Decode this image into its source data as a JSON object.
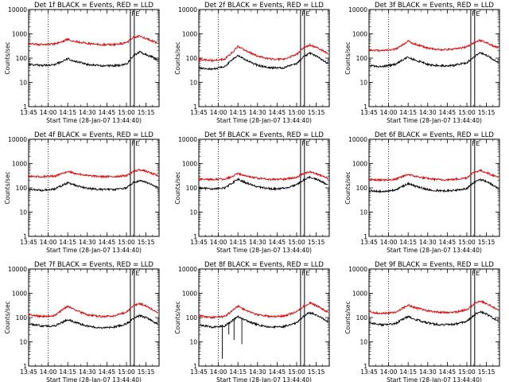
{
  "chart_data": [
    {
      "type": "line",
      "title": "Det 1f BLACK = Events, RED = LLD",
      "xlabel": "Start Time (28-Jan-07 13:44:40)",
      "ylabel": "Counts/sec",
      "yscale": "log",
      "ylim": [
        1,
        10000
      ],
      "xlim": [
        "13:45",
        "15:25"
      ],
      "x_ticks": [
        "13:45",
        "14:00",
        "14:15",
        "14:30",
        "14:45",
        "15:00",
        "15:15"
      ],
      "y_ticks": [
        "1",
        "10",
        "100",
        "1000",
        "10000"
      ],
      "markers": {
        "dotted": [
          "14:00"
        ],
        "solid": [
          "15:03",
          "15:06"
        ],
        "labels": [
          "F",
          "E"
        ]
      },
      "series": [
        {
          "name": "BLACK = Events",
          "color": "#000000",
          "x": [
            "13:45",
            "13:55",
            "14:05",
            "14:10",
            "14:15",
            "14:20",
            "14:30",
            "14:40",
            "14:50",
            "15:00",
            "15:05",
            "15:10",
            "15:15",
            "15:20",
            "15:24"
          ],
          "y": [
            55,
            50,
            55,
            70,
            95,
            75,
            55,
            48,
            48,
            55,
            120,
            180,
            140,
            110,
            80
          ]
        },
        {
          "name": "RED = LLD",
          "color": "#e00000",
          "x": [
            "13:45",
            "13:55",
            "14:05",
            "14:10",
            "14:15",
            "14:20",
            "14:30",
            "14:40",
            "14:50",
            "15:00",
            "15:05",
            "15:10",
            "15:15",
            "15:20",
            "15:24"
          ],
          "y": [
            380,
            360,
            380,
            460,
            600,
            500,
            400,
            360,
            360,
            420,
            700,
            800,
            650,
            500,
            400
          ]
        }
      ]
    },
    {
      "type": "line",
      "title": "Det 2f BLACK = Events, RED = LLD",
      "xlabel": "Start Time (28-Jan-07 13:44:40)",
      "ylabel": "Counts/sec",
      "yscale": "log",
      "ylim": [
        1,
        10000
      ],
      "xlim": [
        "13:45",
        "15:25"
      ],
      "x_ticks": [
        "13:45",
        "14:00",
        "14:15",
        "14:30",
        "14:45",
        "15:00",
        "15:15"
      ],
      "y_ticks": [
        "1",
        "10",
        "100",
        "1000",
        "10000"
      ],
      "markers": {
        "dotted": [
          "14:00"
        ],
        "solid": [
          "15:03",
          "15:06"
        ],
        "labels": [
          "F",
          "E"
        ]
      },
      "series": [
        {
          "name": "BLACK = Events",
          "color": "#000000",
          "x": [
            "13:45",
            "13:55",
            "14:05",
            "14:10",
            "14:15",
            "14:20",
            "14:30",
            "14:40",
            "14:50",
            "15:00",
            "15:05",
            "15:10",
            "15:15",
            "15:20",
            "15:24"
          ],
          "y": [
            40,
            35,
            45,
            80,
            130,
            90,
            50,
            40,
            40,
            60,
            110,
            160,
            120,
            80,
            60
          ]
        },
        {
          "name": "RED = LLD",
          "color": "#e00000",
          "x": [
            "13:45",
            "13:55",
            "14:05",
            "14:10",
            "14:15",
            "14:20",
            "14:30",
            "14:40",
            "14:50",
            "15:00",
            "15:05",
            "15:10",
            "15:15",
            "15:20",
            "15:24"
          ],
          "y": [
            90,
            80,
            90,
            160,
            300,
            220,
            120,
            90,
            90,
            140,
            260,
            350,
            280,
            200,
            150
          ]
        }
      ]
    },
    {
      "type": "line",
      "title": "Det 3f BLACK = Events, RED = LLD",
      "xlabel": "Start Time (28-Jan-07 13:44:40)",
      "ylabel": "Counts/sec",
      "yscale": "log",
      "ylim": [
        1,
        10000
      ],
      "xlim": [
        "13:45",
        "15:25"
      ],
      "x_ticks": [
        "13:45",
        "14:00",
        "14:15",
        "14:30",
        "14:45",
        "15:00",
        "15:15"
      ],
      "y_ticks": [
        "1",
        "10",
        "100",
        "1000",
        "10000"
      ],
      "markers": {
        "dotted": [
          "14:00"
        ],
        "solid": [
          "15:03",
          "15:06"
        ],
        "labels": [
          "F",
          "E"
        ]
      },
      "series": [
        {
          "name": "BLACK = Events",
          "color": "#000000",
          "x": [
            "13:45",
            "13:55",
            "14:05",
            "14:10",
            "14:15",
            "14:20",
            "14:30",
            "14:40",
            "14:50",
            "15:00",
            "15:05",
            "15:10",
            "15:15",
            "15:20",
            "15:24"
          ],
          "y": [
            50,
            45,
            55,
            80,
            110,
            85,
            55,
            48,
            50,
            65,
            110,
            170,
            130,
            90,
            70
          ]
        },
        {
          "name": "RED = LLD",
          "color": "#e00000",
          "x": [
            "13:45",
            "13:55",
            "14:05",
            "14:10",
            "14:15",
            "14:20",
            "14:30",
            "14:40",
            "14:50",
            "15:00",
            "15:05",
            "15:10",
            "15:15",
            "15:20",
            "15:24"
          ],
          "y": [
            220,
            200,
            230,
            330,
            500,
            380,
            260,
            220,
            230,
            290,
            420,
            550,
            430,
            320,
            260
          ]
        }
      ]
    },
    {
      "type": "line",
      "title": "Det 4f BLACK = Events, RED = LLD",
      "xlabel": "Start Time (28-Jan-07 13:44:40)",
      "ylabel": "Counts/sec",
      "yscale": "log",
      "ylim": [
        1,
        10000
      ],
      "xlim": [
        "13:45",
        "15:25"
      ],
      "x_ticks": [
        "13:45",
        "14:00",
        "14:15",
        "14:30",
        "14:45",
        "15:00",
        "15:15"
      ],
      "y_ticks": [
        "1",
        "10",
        "100",
        "1000",
        "10000"
      ],
      "markers": {
        "dotted": [
          "14:00"
        ],
        "solid": [
          "15:03",
          "15:06"
        ],
        "labels": [
          "F",
          "E"
        ]
      },
      "series": [
        {
          "name": "BLACK = Events",
          "color": "#000000",
          "x": [
            "13:45",
            "13:55",
            "14:05",
            "14:10",
            "14:15",
            "14:20",
            "14:30",
            "14:40",
            "14:50",
            "15:00",
            "15:05",
            "15:10",
            "15:15",
            "15:20",
            "15:24"
          ],
          "y": [
            85,
            80,
            90,
            120,
            160,
            130,
            95,
            85,
            85,
            100,
            160,
            200,
            170,
            130,
            100
          ]
        },
        {
          "name": "RED = LLD",
          "color": "#e00000",
          "x": [
            "13:45",
            "13:55",
            "14:05",
            "14:10",
            "14:15",
            "14:20",
            "14:30",
            "14:40",
            "14:50",
            "15:00",
            "15:05",
            "15:10",
            "15:15",
            "15:20",
            "15:24"
          ],
          "y": [
            300,
            290,
            300,
            380,
            480,
            400,
            320,
            290,
            290,
            320,
            460,
            560,
            480,
            380,
            320
          ]
        }
      ]
    },
    {
      "type": "line",
      "title": "Det 5f BLACK = Events, RED = LLD",
      "xlabel": "Start Time (28-Jan-07 13:44:40)",
      "ylabel": "Counts/sec",
      "yscale": "log",
      "ylim": [
        1,
        10000
      ],
      "xlim": [
        "13:45",
        "15:25"
      ],
      "x_ticks": [
        "13:45",
        "14:00",
        "14:15",
        "14:30",
        "14:45",
        "15:00",
        "15:15"
      ],
      "y_ticks": [
        "1",
        "10",
        "100",
        "1000",
        "10000"
      ],
      "markers": {
        "dotted": [
          "14:00"
        ],
        "solid": [
          "15:03",
          "15:06"
        ],
        "labels": [
          "F",
          "E"
        ]
      },
      "series": [
        {
          "name": "BLACK = Events",
          "color": "#000000",
          "x": [
            "13:45",
            "13:55",
            "14:05",
            "14:10",
            "14:15",
            "14:20",
            "14:30",
            "14:40",
            "14:50",
            "15:00",
            "15:05",
            "15:10",
            "15:15",
            "15:20",
            "15:24"
          ],
          "y": [
            100,
            90,
            100,
            150,
            230,
            170,
            110,
            90,
            95,
            130,
            210,
            280,
            230,
            170,
            130
          ]
        },
        {
          "name": "RED = LLD",
          "color": "#e00000",
          "x": [
            "13:45",
            "13:55",
            "14:05",
            "14:10",
            "14:15",
            "14:20",
            "14:30",
            "14:40",
            "14:50",
            "15:00",
            "15:05",
            "15:10",
            "15:15",
            "15:20",
            "15:24"
          ],
          "y": [
            230,
            220,
            230,
            290,
            380,
            320,
            250,
            220,
            225,
            270,
            380,
            450,
            380,
            300,
            250
          ]
        }
      ]
    },
    {
      "type": "line",
      "title": "Det 6f BLACK = Events, RED = LLD",
      "xlabel": "Start Time (28-Jan-07 13:44:40)",
      "ylabel": "Counts/sec",
      "yscale": "log",
      "ylim": [
        1,
        10000
      ],
      "xlim": [
        "13:45",
        "15:25"
      ],
      "x_ticks": [
        "13:45",
        "14:00",
        "14:15",
        "14:30",
        "14:45",
        "15:00",
        "15:15"
      ],
      "y_ticks": [
        "1",
        "10",
        "100",
        "1000",
        "10000"
      ],
      "markers": {
        "dotted": [
          "14:00"
        ],
        "solid": [
          "15:03",
          "15:06"
        ],
        "labels": [
          "F",
          "E"
        ]
      },
      "series": [
        {
          "name": "BLACK = Events",
          "color": "#000000",
          "x": [
            "13:45",
            "13:55",
            "14:05",
            "14:10",
            "14:15",
            "14:20",
            "14:30",
            "14:40",
            "14:50",
            "15:00",
            "15:05",
            "15:10",
            "15:15",
            "15:20",
            "15:24"
          ],
          "y": [
            75,
            70,
            80,
            110,
            150,
            120,
            85,
            75,
            78,
            95,
            160,
            220,
            180,
            130,
            100
          ]
        },
        {
          "name": "RED = LLD",
          "color": "#e00000",
          "x": [
            "13:45",
            "13:55",
            "14:05",
            "14:10",
            "14:15",
            "14:20",
            "14:30",
            "14:40",
            "14:50",
            "15:00",
            "15:05",
            "15:10",
            "15:15",
            "15:20",
            "15:24"
          ],
          "y": [
            220,
            210,
            220,
            280,
            360,
            300,
            240,
            215,
            220,
            260,
            420,
            520,
            430,
            330,
            270
          ]
        }
      ]
    },
    {
      "type": "line",
      "title": "Det 7f BLACK = Events, RED = LLD",
      "xlabel": "Start Time (28-Jan-07 13:44:40)",
      "ylabel": "Counts/sec",
      "yscale": "log",
      "ylim": [
        1,
        10000
      ],
      "xlim": [
        "13:45",
        "15:25"
      ],
      "x_ticks": [
        "13:45",
        "14:00",
        "14:15",
        "14:30",
        "14:45",
        "15:00",
        "15:15"
      ],
      "y_ticks": [
        "1",
        "10",
        "100",
        "1000",
        "10000"
      ],
      "markers": {
        "dotted": [
          "14:00"
        ],
        "solid": [
          "15:03",
          "15:06"
        ],
        "labels": [
          "F",
          "E"
        ]
      },
      "series": [
        {
          "name": "BLACK = Events",
          "color": "#000000",
          "x": [
            "13:45",
            "13:55",
            "14:05",
            "14:10",
            "14:15",
            "14:20",
            "14:30",
            "14:40",
            "14:50",
            "15:00",
            "15:05",
            "15:10",
            "15:15",
            "15:20",
            "15:24"
          ],
          "y": [
            55,
            45,
            45,
            60,
            85,
            65,
            45,
            38,
            40,
            55,
            90,
            120,
            100,
            70,
            55
          ]
        },
        {
          "name": "RED = LLD",
          "color": "#e00000",
          "x": [
            "13:45",
            "13:55",
            "14:05",
            "14:10",
            "14:15",
            "14:20",
            "14:30",
            "14:40",
            "14:50",
            "15:00",
            "15:05",
            "15:10",
            "15:15",
            "15:20",
            "15:24"
          ],
          "y": [
            130,
            110,
            120,
            190,
            300,
            210,
            130,
            110,
            115,
            170,
            290,
            380,
            300,
            210,
            160
          ]
        }
      ]
    },
    {
      "type": "line",
      "title": "Det 8f BLACK = Events, RED = LLD",
      "xlabel": "Start Time (28-Jan-07 13:44:40)",
      "ylabel": "Counts/sec",
      "yscale": "log",
      "ylim": [
        1,
        10000
      ],
      "xlim": [
        "13:45",
        "15:25"
      ],
      "x_ticks": [
        "13:45",
        "14:00",
        "14:15",
        "14:30",
        "14:45",
        "15:00",
        "15:15"
      ],
      "y_ticks": [
        "1",
        "10",
        "100",
        "1000",
        "10000"
      ],
      "markers": {
        "dotted": [
          "14:00"
        ],
        "solid": [
          "15:03",
          "15:06"
        ],
        "labels": [
          "F",
          "E"
        ]
      },
      "dropouts": [
        {
          "x": "14:03",
          "y": 2
        },
        {
          "x": "14:08",
          "y": 20
        },
        {
          "x": "14:12",
          "y": 12
        },
        {
          "x": "14:18",
          "y": 8
        }
      ],
      "series": [
        {
          "name": "BLACK = Events",
          "color": "#000000",
          "x": [
            "13:45",
            "13:55",
            "14:05",
            "14:10",
            "14:15",
            "14:20",
            "14:30",
            "14:40",
            "14:50",
            "15:00",
            "15:05",
            "15:10",
            "15:15",
            "15:20",
            "15:24"
          ],
          "y": [
            50,
            40,
            45,
            70,
            110,
            80,
            50,
            40,
            42,
            60,
            110,
            160,
            130,
            90,
            65
          ]
        },
        {
          "name": "RED = LLD",
          "color": "#e00000",
          "x": [
            "13:45",
            "13:55",
            "14:05",
            "14:10",
            "14:15",
            "14:20",
            "14:30",
            "14:40",
            "14:50",
            "15:00",
            "15:05",
            "15:10",
            "15:15",
            "15:20",
            "15:24"
          ],
          "y": [
            120,
            100,
            110,
            180,
            300,
            210,
            130,
            110,
            115,
            170,
            280,
            400,
            320,
            220,
            170
          ]
        }
      ]
    },
    {
      "type": "line",
      "title": "Det 9f BLACK = Events, RED = LLD",
      "xlabel": "Start Time (28-Jan-07 13:44:40)",
      "ylabel": "Counts/sec",
      "yscale": "log",
      "ylim": [
        1,
        10000
      ],
      "xlim": [
        "13:45",
        "15:25"
      ],
      "x_ticks": [
        "13:45",
        "14:00",
        "14:15",
        "14:30",
        "14:45",
        "15:00",
        "15:15"
      ],
      "y_ticks": [
        "1",
        "10",
        "100",
        "1000",
        "10000"
      ],
      "markers": {
        "dotted": [
          "14:00"
        ],
        "solid": [
          "15:03",
          "15:06"
        ],
        "labels": [
          "F",
          "E"
        ]
      },
      "series": [
        {
          "name": "BLACK = Events",
          "color": "#000000",
          "x": [
            "13:45",
            "13:55",
            "14:05",
            "14:10",
            "14:15",
            "14:20",
            "14:30",
            "14:40",
            "14:50",
            "15:00",
            "15:05",
            "15:10",
            "15:15",
            "15:20",
            "15:24"
          ],
          "y": [
            60,
            50,
            55,
            80,
            110,
            85,
            60,
            50,
            52,
            70,
            120,
            180,
            140,
            95,
            75
          ]
        },
        {
          "name": "RED = LLD",
          "color": "#e00000",
          "x": [
            "13:45",
            "13:55",
            "14:05",
            "14:10",
            "14:15",
            "14:20",
            "14:30",
            "14:40",
            "14:50",
            "15:00",
            "15:05",
            "15:10",
            "15:15",
            "15:20",
            "15:24"
          ],
          "y": [
            170,
            150,
            160,
            230,
            330,
            260,
            190,
            160,
            165,
            210,
            350,
            480,
            380,
            270,
            210
          ]
        }
      ]
    }
  ]
}
